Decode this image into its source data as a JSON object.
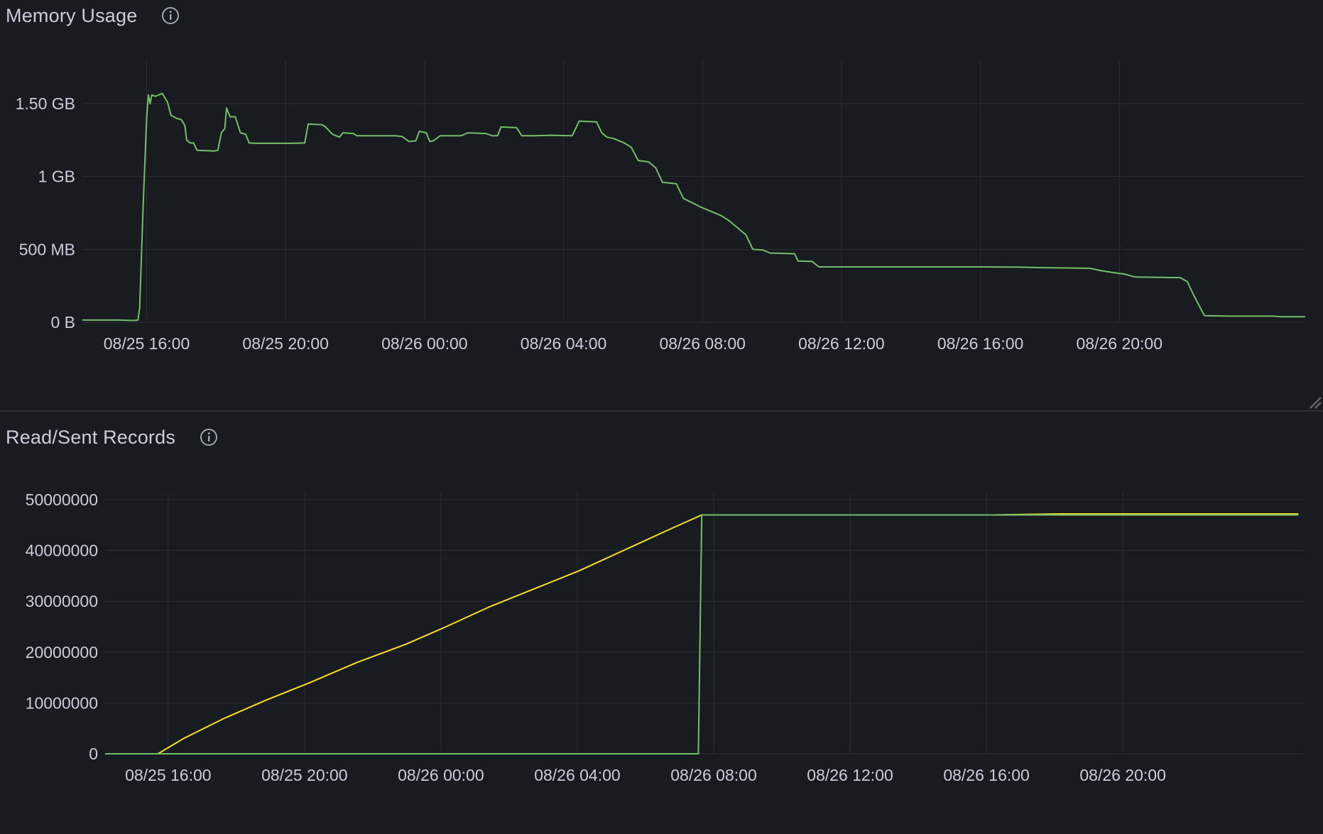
{
  "panels": [
    {
      "id": "memory",
      "title": "Memory Usage",
      "chart_data": {
        "type": "line",
        "title": "Memory Usage",
        "xlabel": "",
        "ylabel": "",
        "x_unit": "hours since 08/25 14:09",
        "x_ticks": [
          "08/25 16:00",
          "08/25 20:00",
          "08/26 00:00",
          "08/26 04:00",
          "08/26 08:00",
          "08/26 12:00",
          "08/26 16:00",
          "08/26 20:00"
        ],
        "y_ticks": [
          "0 B",
          "500 MB",
          "1 GB",
          "1.50 GB"
        ],
        "ylim": [
          0,
          1800
        ],
        "y_unit": "MB",
        "grid": true,
        "legend": "none",
        "series": [
          {
            "color": "#73bf69",
            "points": [
              [
                0,
                15
              ],
              [
                0.5,
                15
              ],
              [
                1,
                15
              ],
              [
                1.5,
                12
              ],
              [
                1.6,
                15
              ],
              [
                1.65,
                100
              ],
              [
                1.75,
                800
              ],
              [
                1.85,
                1400
              ],
              [
                1.9,
                1560
              ],
              [
                1.95,
                1500
              ],
              [
                2.0,
                1560
              ],
              [
                2.1,
                1550
              ],
              [
                2.3,
                1570
              ],
              [
                2.45,
                1510
              ],
              [
                2.55,
                1420
              ],
              [
                2.7,
                1400
              ],
              [
                2.85,
                1390
              ],
              [
                2.95,
                1350
              ],
              [
                3.0,
                1250
              ],
              [
                3.1,
                1230
              ],
              [
                3.2,
                1230
              ],
              [
                3.3,
                1180
              ],
              [
                3.8,
                1175
              ],
              [
                3.9,
                1180
              ],
              [
                4.0,
                1300
              ],
              [
                4.1,
                1330
              ],
              [
                4.15,
                1470
              ],
              [
                4.25,
                1410
              ],
              [
                4.4,
                1410
              ],
              [
                4.55,
                1300
              ],
              [
                4.7,
                1290
              ],
              [
                4.8,
                1230
              ],
              [
                5.0,
                1228
              ],
              [
                6.0,
                1228
              ],
              [
                6.4,
                1230
              ],
              [
                6.5,
                1360
              ],
              [
                6.9,
                1355
              ],
              [
                7.0,
                1340
              ],
              [
                7.2,
                1290
              ],
              [
                7.4,
                1270
              ],
              [
                7.5,
                1300
              ],
              [
                7.8,
                1295
              ],
              [
                7.9,
                1280
              ],
              [
                9.0,
                1280
              ],
              [
                9.2,
                1275
              ],
              [
                9.4,
                1240
              ],
              [
                9.6,
                1245
              ],
              [
                9.7,
                1310
              ],
              [
                9.9,
                1300
              ],
              [
                10.0,
                1240
              ],
              [
                10.1,
                1245
              ],
              [
                10.3,
                1280
              ],
              [
                10.7,
                1280
              ],
              [
                10.9,
                1280
              ],
              [
                11.1,
                1300
              ],
              [
                11.6,
                1295
              ],
              [
                11.8,
                1280
              ],
              [
                11.95,
                1280
              ],
              [
                12.05,
                1340
              ],
              [
                12.5,
                1335
              ],
              [
                12.65,
                1280
              ],
              [
                13.0,
                1280
              ],
              [
                13.5,
                1283
              ],
              [
                14.1,
                1280
              ],
              [
                14.3,
                1380
              ],
              [
                14.8,
                1375
              ],
              [
                14.95,
                1300
              ],
              [
                15.1,
                1270
              ],
              [
                15.3,
                1260
              ],
              [
                15.6,
                1230
              ],
              [
                15.8,
                1200
              ],
              [
                16.0,
                1110
              ],
              [
                16.3,
                1100
              ],
              [
                16.5,
                1060
              ],
              [
                16.7,
                960
              ],
              [
                17.1,
                950
              ],
              [
                17.3,
                850
              ],
              [
                17.6,
                815
              ],
              [
                17.8,
                790
              ],
              [
                18.1,
                760
              ],
              [
                18.4,
                730
              ],
              [
                18.6,
                700
              ],
              [
                18.8,
                660
              ],
              [
                19.1,
                600
              ],
              [
                19.3,
                500
              ],
              [
                19.6,
                495
              ],
              [
                19.8,
                475
              ],
              [
                20.5,
                470
              ],
              [
                20.6,
                420
              ],
              [
                21.0,
                418
              ],
              [
                21.2,
                380
              ],
              [
                22.0,
                380
              ],
              [
                24.0,
                380
              ],
              [
                26.0,
                380
              ],
              [
                27.0,
                378
              ],
              [
                27.5,
                375
              ],
              [
                28.5,
                372
              ],
              [
                29.0,
                370
              ],
              [
                29.3,
                355
              ],
              [
                29.7,
                340
              ],
              [
                30.0,
                330
              ],
              [
                30.3,
                310
              ],
              [
                31.0,
                308
              ],
              [
                31.6,
                306
              ],
              [
                31.8,
                280
              ],
              [
                32.0,
                180
              ],
              [
                32.2,
                90
              ],
              [
                32.3,
                45
              ],
              [
                33.0,
                42
              ],
              [
                34.3,
                42
              ],
              [
                34.5,
                38
              ],
              [
                35.2,
                38
              ]
            ]
          }
        ]
      }
    },
    {
      "id": "records",
      "title": "Read/Sent Records",
      "chart_data": {
        "type": "line",
        "title": "Read/Sent Records",
        "xlabel": "",
        "ylabel": "",
        "x_unit": "hours since 08/25 14:09",
        "x_ticks": [
          "08/25 16:00",
          "08/25 20:00",
          "08/26 00:00",
          "08/26 04:00",
          "08/26 08:00",
          "08/26 12:00",
          "08/26 16:00",
          "08/26 20:00"
        ],
        "y_ticks": [
          "0",
          "10000000",
          "20000000",
          "30000000",
          "40000000",
          "50000000"
        ],
        "ylim": [
          0,
          50000000
        ],
        "grid": true,
        "legend": "none",
        "series": [
          {
            "color": "#fade2a",
            "points": [
              [
                0,
                0
              ],
              [
                1,
                0
              ],
              [
                1.5,
                0
              ],
              [
                1.55,
                0
              ],
              [
                2.3,
                3000000
              ],
              [
                3.5,
                7000000
              ],
              [
                4.7,
                10500000
              ],
              [
                6.0,
                14000000
              ],
              [
                7.4,
                18000000
              ],
              [
                8.8,
                21500000
              ],
              [
                10.0,
                25000000
              ],
              [
                11.3,
                29000000
              ],
              [
                12.6,
                32500000
              ],
              [
                13.9,
                36000000
              ],
              [
                15.2,
                40000000
              ],
              [
                16.5,
                44000000
              ],
              [
                17.5,
                47000000
              ],
              [
                22.0,
                47000000
              ],
              [
                26.0,
                47000000
              ],
              [
                28.0,
                47200000
              ],
              [
                35.0,
                47200000
              ]
            ]
          },
          {
            "color": "#73bf69",
            "points": [
              [
                0,
                0
              ],
              [
                17.4,
                0
              ],
              [
                17.5,
                47000000
              ],
              [
                35.0,
                47000000
              ]
            ]
          }
        ]
      }
    }
  ]
}
